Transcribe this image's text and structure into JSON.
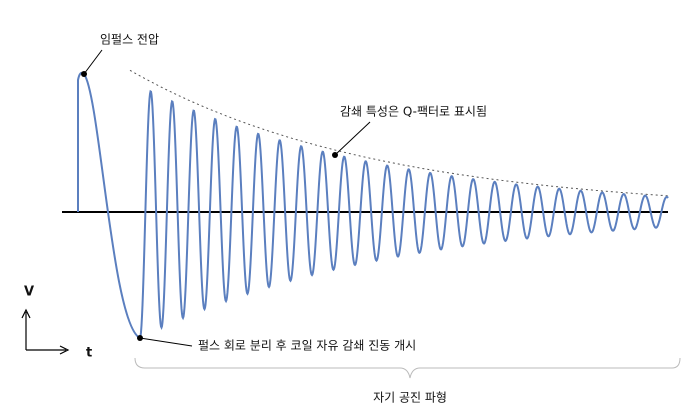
{
  "labels": {
    "impulse": "임펄스 전압",
    "decay": "감쇄 특성은 Q-팩터로 표시됨",
    "start": "펄스 회로 분리 후 코일 자유 감쇄 진동 개시",
    "bracket": "자기 공진 파형",
    "axis_v": "V",
    "axis_t": "t"
  }
}
